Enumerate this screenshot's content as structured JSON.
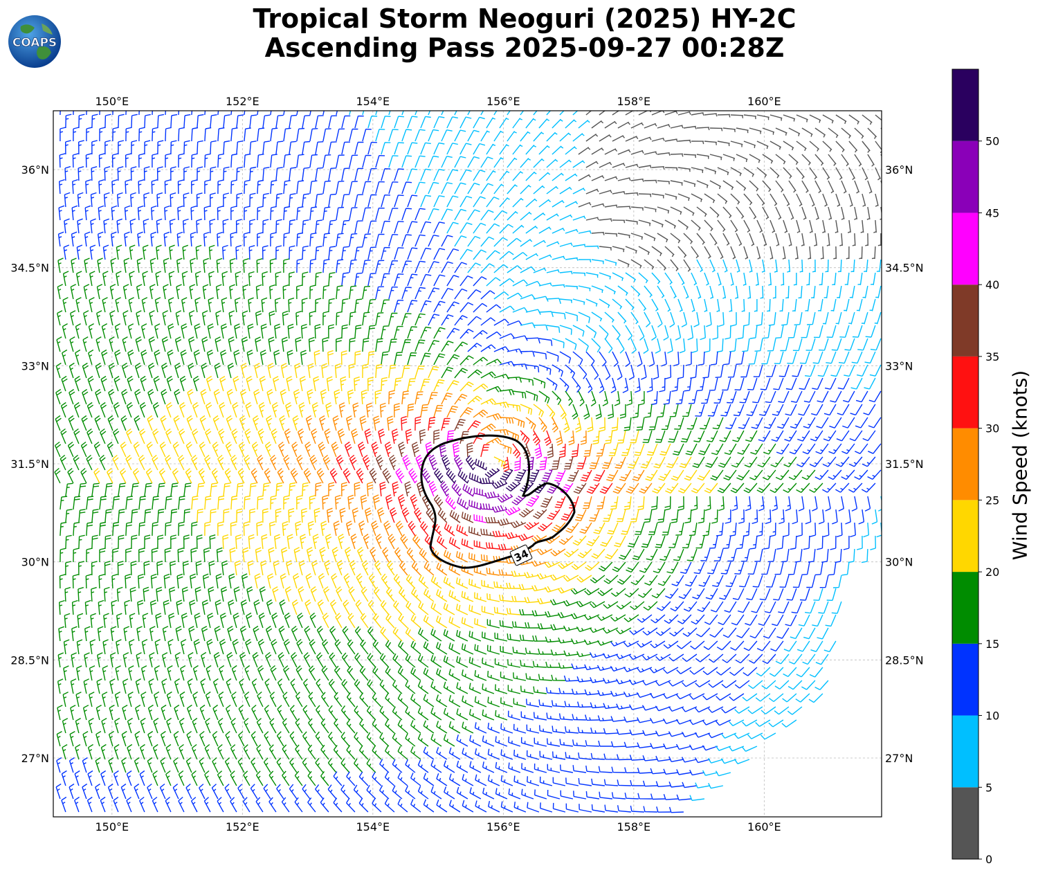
{
  "header": {
    "title_line1": "Tropical Storm Neoguri (2025) HY-2C",
    "title_line2": "Ascending Pass 2025-09-27 00:28Z"
  },
  "logo": {
    "text": "COAPS",
    "icon": "globe-logo"
  },
  "map": {
    "lon_range": [
      149.1,
      161.8
    ],
    "lat_range": [
      26.1,
      36.9
    ],
    "lon_ticks": [
      "150°E",
      "152°E",
      "154°E",
      "156°E",
      "158°E",
      "160°E"
    ],
    "lat_ticks": [
      "36°N",
      "34.5°N",
      "33°N",
      "31.5°N",
      "30°N",
      "28.5°N",
      "27°N"
    ],
    "grid": "dashed gray",
    "storm_center": {
      "lon": 155.8,
      "lat": 31.5
    },
    "contour_label": "34",
    "contour_description": "34-knot wind radius (black closed contour)"
  },
  "colorbar": {
    "title": "Wind Speed (knots)",
    "ticks": [
      "0",
      "5",
      "10",
      "15",
      "20",
      "25",
      "30",
      "35",
      "40",
      "45",
      "50"
    ],
    "bins": [
      {
        "range": [
          0,
          5
        ],
        "color": "#555555"
      },
      {
        "range": [
          5,
          10
        ],
        "color": "#00bfff"
      },
      {
        "range": [
          10,
          15
        ],
        "color": "#0033ff"
      },
      {
        "range": [
          15,
          20
        ],
        "color": "#008c00"
      },
      {
        "range": [
          20,
          25
        ],
        "color": "#ffd700"
      },
      {
        "range": [
          25,
          30
        ],
        "color": "#ff8c00"
      },
      {
        "range": [
          30,
          35
        ],
        "color": "#ff1111"
      },
      {
        "range": [
          35,
          40
        ],
        "color": "#7f3a28"
      },
      {
        "range": [
          40,
          45
        ],
        "color": "#ff00ff"
      },
      {
        "range": [
          45,
          50
        ],
        "color": "#8a00b8"
      },
      {
        "range": [
          50,
          55
        ],
        "color": "#2a005f"
      }
    ]
  }
}
